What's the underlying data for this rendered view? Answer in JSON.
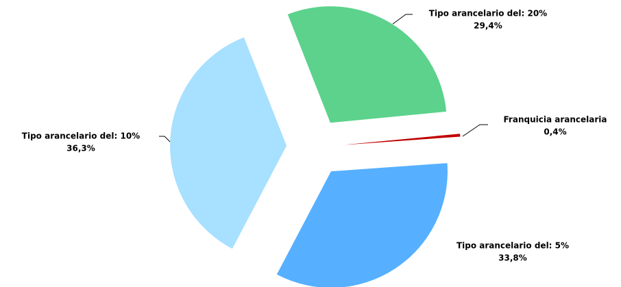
{
  "chart_data": {
    "type": "pie",
    "categories": [
      "Franquicia arancelaria",
      "Tipo arancelario del: 5%",
      "Tipo arancelario del: 10%",
      "Tipo arancelario del: 20%"
    ],
    "values": [
      0.4,
      33.8,
      36.3,
      29.4
    ],
    "value_labels": [
      "0,4%",
      "33,8%",
      "36,3%",
      "29,4%"
    ],
    "colors": [
      "#c00000",
      "#56b0ff",
      "#a8e0ff",
      "#5cd28c"
    ]
  }
}
